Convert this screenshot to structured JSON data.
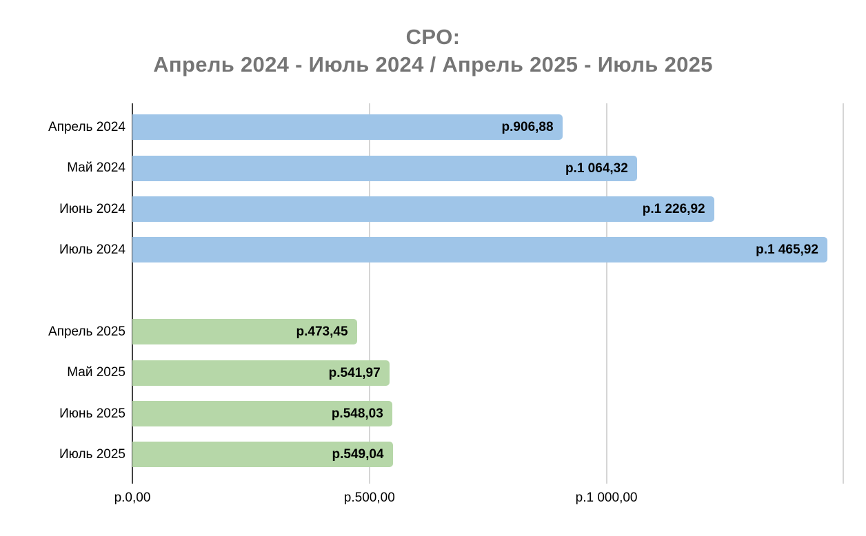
{
  "chart_data": {
    "type": "bar",
    "orientation": "horizontal",
    "title_line1": "CPO:",
    "title_line2": "Апрель 2024 - Июль 2024 / Апрель 2025 - Июль 2025",
    "currency_prefix": "р.",
    "xlabel": "",
    "ylabel": "",
    "xlim": [
      0,
      1530
    ],
    "grid": true,
    "legend": "none",
    "ticks": [
      {
        "value": 0,
        "label": "р.0,00"
      },
      {
        "value": 500,
        "label": "р.500,00"
      },
      {
        "value": 1000,
        "label": "р.1 000,00"
      },
      {
        "value": 1500,
        "label": ""
      }
    ],
    "series": [
      {
        "name": "2024",
        "color": "#9fc5e8",
        "categories": [
          "Апрель 2024",
          "Май 2024",
          "Июнь 2024",
          "Июль 2024"
        ],
        "values": [
          906.88,
          1064.32,
          1226.92,
          1465.92
        ]
      },
      {
        "name": "2025",
        "color": "#b6d7a8",
        "categories": [
          "Апрель 2025",
          "Май 2025",
          "Июнь 2025",
          "Июль 2025"
        ],
        "values": [
          473.45,
          541.97,
          548.03,
          549.04
        ]
      }
    ],
    "rows": [
      {
        "label": "Апрель 2024",
        "value": 906.88,
        "display": "р.906,88",
        "group": "2024"
      },
      {
        "label": "Май 2024",
        "value": 1064.32,
        "display": "р.1 064,32",
        "group": "2024"
      },
      {
        "label": "Июнь 2024",
        "value": 1226.92,
        "display": "р.1 226,92",
        "group": "2024"
      },
      {
        "label": "Июль 2024",
        "value": 1465.92,
        "display": "р.1 465,92",
        "group": "2024"
      },
      {
        "label": "",
        "value": null,
        "display": "",
        "group": "spacer"
      },
      {
        "label": "Апрель 2025",
        "value": 473.45,
        "display": "р.473,45",
        "group": "2025"
      },
      {
        "label": "Май 2025",
        "value": 541.97,
        "display": "р.541,97",
        "group": "2025"
      },
      {
        "label": "Июнь 2025",
        "value": 548.03,
        "display": "р.548,03",
        "group": "2025"
      },
      {
        "label": "Июль 2025",
        "value": 549.04,
        "display": "р.549,04",
        "group": "2025"
      }
    ],
    "colors": {
      "bar_2024": "#9fc5e8",
      "bar_2025": "#b6d7a8",
      "gridline": "#d5d5d5",
      "axis_line": "#424242",
      "title_text": "#757575",
      "label_text": "#000000"
    }
  }
}
